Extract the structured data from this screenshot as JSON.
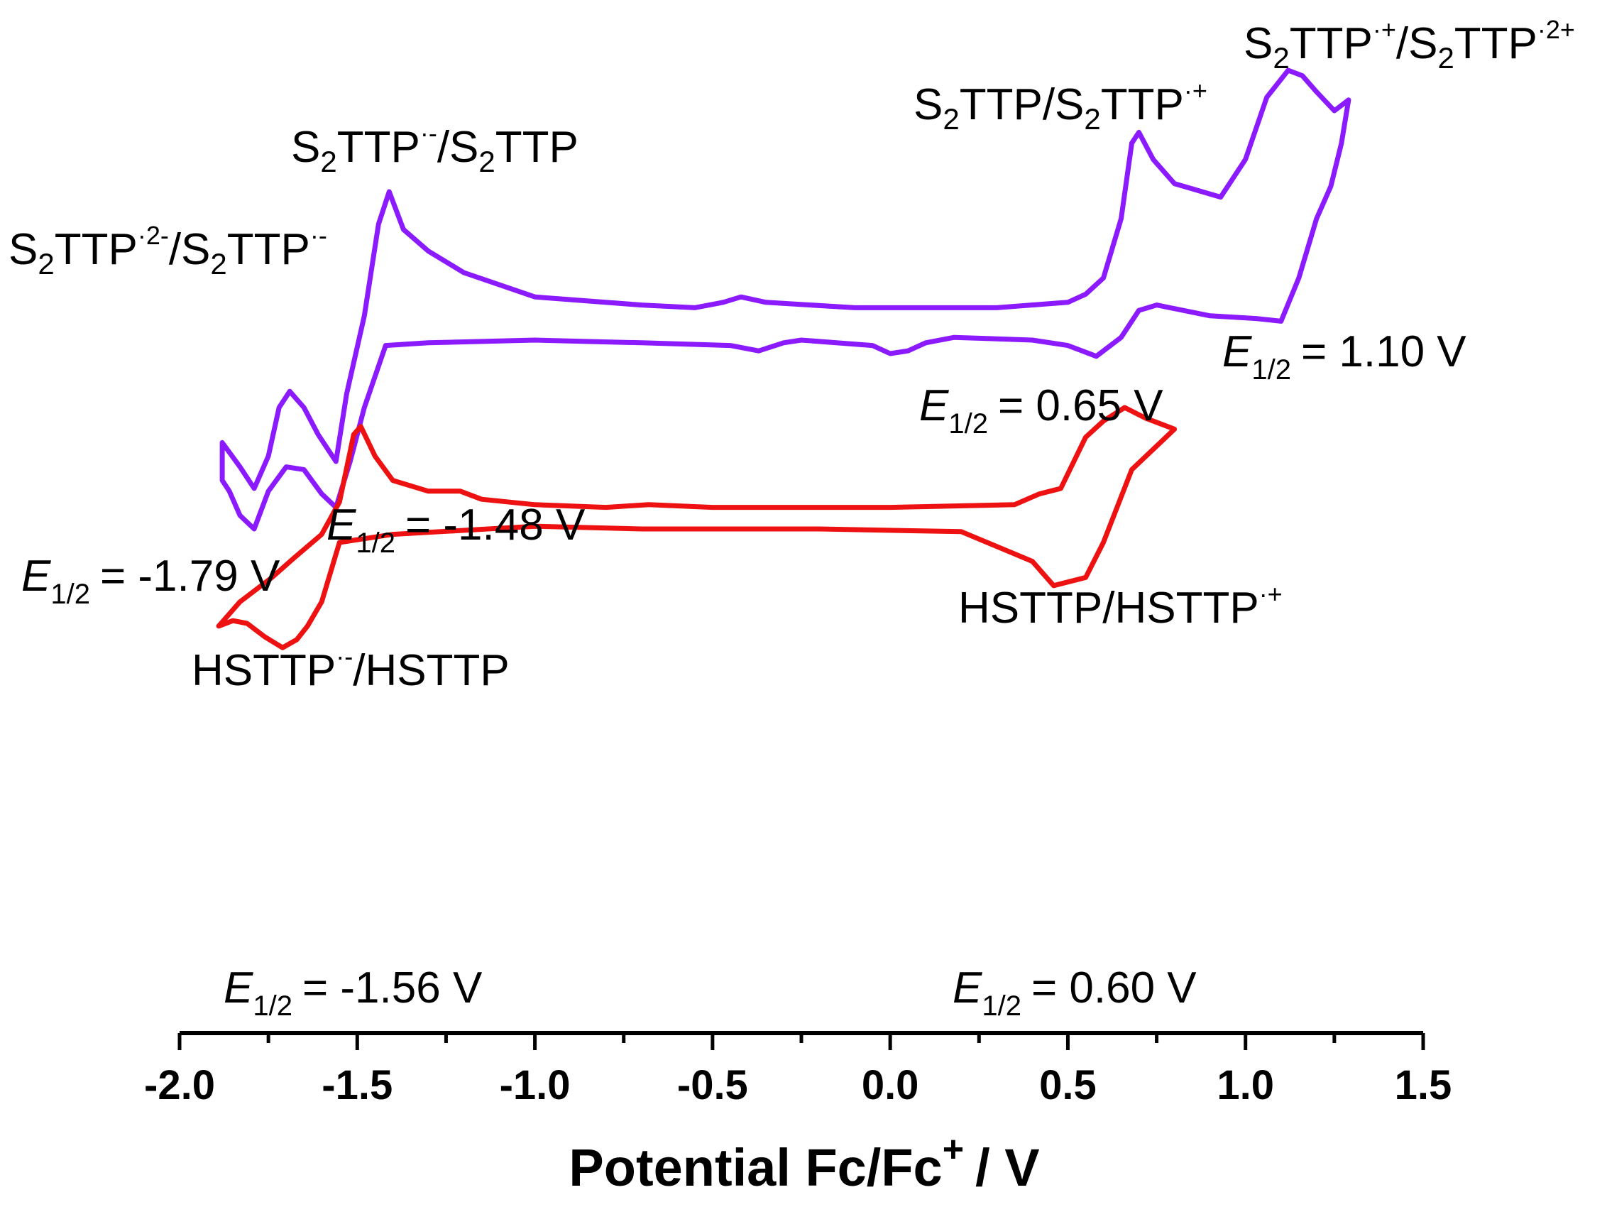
{
  "chart_data": {
    "type": "line",
    "xlabel": "Potential Fc/Fc",
    "xlabel_sup": "+",
    "xlabel_unit": "/ V",
    "xlim": [
      -2.0,
      1.5
    ],
    "x_ticks": [
      "-2.0",
      "-1.5",
      "-1.0",
      "-0.5",
      "0.0",
      "0.5",
      "1.0",
      "1.5"
    ],
    "y_axis": "none",
    "grid": false,
    "colors": {
      "S2TTP": "#8B1AFF",
      "HSTTP": "#EE1111",
      "axis": "#000000"
    },
    "series": [
      {
        "name": "S2TTP",
        "upper": [
          [
            -1.88,
            -0.93
          ],
          [
            -1.83,
            -1.02
          ],
          [
            -1.79,
            -1.1
          ],
          [
            -1.75,
            -0.98
          ],
          [
            -1.72,
            -0.8
          ],
          [
            -1.69,
            -0.74
          ],
          [
            -1.65,
            -0.8
          ],
          [
            -1.61,
            -0.9
          ],
          [
            -1.56,
            -1.0
          ],
          [
            -1.53,
            -0.75
          ],
          [
            -1.48,
            -0.46
          ],
          [
            -1.44,
            -0.12
          ],
          [
            -1.41,
            0.0
          ],
          [
            -1.37,
            -0.14
          ],
          [
            -1.3,
            -0.22
          ],
          [
            -1.2,
            -0.3
          ],
          [
            -1.0,
            -0.39
          ],
          [
            -0.7,
            -0.42
          ],
          [
            -0.55,
            -0.43
          ],
          [
            -0.47,
            -0.41
          ],
          [
            -0.42,
            -0.39
          ],
          [
            -0.35,
            -0.41
          ],
          [
            -0.1,
            -0.43
          ],
          [
            0.3,
            -0.43
          ],
          [
            0.5,
            -0.41
          ],
          [
            0.55,
            -0.38
          ],
          [
            0.6,
            -0.32
          ],
          [
            0.65,
            -0.1
          ],
          [
            0.68,
            0.18
          ],
          [
            0.7,
            0.22
          ],
          [
            0.74,
            0.12
          ],
          [
            0.8,
            0.03
          ],
          [
            0.93,
            -0.02
          ],
          [
            1.0,
            0.12
          ],
          [
            1.06,
            0.35
          ],
          [
            1.12,
            0.45
          ],
          [
            1.16,
            0.43
          ],
          [
            1.2,
            0.37
          ],
          [
            1.25,
            0.3
          ],
          [
            1.29,
            0.34
          ]
        ],
        "lower": [
          [
            1.29,
            0.34
          ],
          [
            1.27,
            0.18
          ],
          [
            1.24,
            0.02
          ],
          [
            1.2,
            -0.1
          ],
          [
            1.15,
            -0.32
          ],
          [
            1.1,
            -0.48
          ],
          [
            1.03,
            -0.47
          ],
          [
            0.9,
            -0.46
          ],
          [
            0.75,
            -0.42
          ],
          [
            0.7,
            -0.44
          ],
          [
            0.65,
            -0.54
          ],
          [
            0.58,
            -0.61
          ],
          [
            0.5,
            -0.57
          ],
          [
            0.4,
            -0.55
          ],
          [
            0.18,
            -0.54
          ],
          [
            0.1,
            -0.56
          ],
          [
            0.05,
            -0.59
          ],
          [
            0.0,
            -0.6
          ],
          [
            -0.05,
            -0.57
          ],
          [
            -0.25,
            -0.55
          ],
          [
            -0.3,
            -0.56
          ],
          [
            -0.37,
            -0.59
          ],
          [
            -0.45,
            -0.57
          ],
          [
            -0.7,
            -0.56
          ],
          [
            -1.0,
            -0.55
          ],
          [
            -1.3,
            -0.56
          ],
          [
            -1.42,
            -0.57
          ],
          [
            -1.48,
            -0.8
          ],
          [
            -1.52,
            -1.0
          ],
          [
            -1.56,
            -1.17
          ],
          [
            -1.6,
            -1.12
          ],
          [
            -1.65,
            -1.03
          ],
          [
            -1.7,
            -1.02
          ],
          [
            -1.75,
            -1.11
          ],
          [
            -1.79,
            -1.25
          ],
          [
            -1.83,
            -1.2
          ],
          [
            -1.86,
            -1.11
          ],
          [
            -1.88,
            -1.07
          ]
        ]
      },
      {
        "name": "HSTTP",
        "upper": [
          [
            -1.83,
            -1.52
          ],
          [
            -1.79,
            -1.48
          ],
          [
            -1.74,
            -1.43
          ],
          [
            -1.68,
            -1.36
          ],
          [
            -1.6,
            -1.27
          ],
          [
            -1.55,
            -1.15
          ],
          [
            -1.51,
            -0.9
          ],
          [
            -1.49,
            -0.87
          ],
          [
            -1.45,
            -0.98
          ],
          [
            -1.4,
            -1.07
          ],
          [
            -1.3,
            -1.11
          ],
          [
            -1.21,
            -1.11
          ],
          [
            -1.15,
            -1.14
          ],
          [
            -1.0,
            -1.16
          ],
          [
            -0.8,
            -1.17
          ],
          [
            -0.68,
            -1.16
          ],
          [
            -0.5,
            -1.17
          ],
          [
            -0.3,
            -1.17
          ],
          [
            0.0,
            -1.17
          ],
          [
            0.35,
            -1.16
          ],
          [
            0.42,
            -1.12
          ],
          [
            0.45,
            -1.11
          ],
          [
            0.48,
            -1.1
          ],
          [
            0.55,
            -0.91
          ],
          [
            0.6,
            -0.85
          ],
          [
            0.66,
            -0.8
          ],
          [
            0.72,
            -0.84
          ],
          [
            0.8,
            -0.88
          ]
        ],
        "lower": [
          [
            0.8,
            -0.88
          ],
          [
            0.76,
            -0.93
          ],
          [
            0.68,
            -1.03
          ],
          [
            0.6,
            -1.3
          ],
          [
            0.55,
            -1.43
          ],
          [
            0.46,
            -1.46
          ],
          [
            0.4,
            -1.37
          ],
          [
            0.2,
            -1.26
          ],
          [
            -0.2,
            -1.25
          ],
          [
            -0.7,
            -1.25
          ],
          [
            -1.0,
            -1.24
          ],
          [
            -1.4,
            -1.27
          ],
          [
            -1.55,
            -1.3
          ],
          [
            -1.6,
            -1.52
          ],
          [
            -1.64,
            -1.61
          ],
          [
            -1.67,
            -1.66
          ],
          [
            -1.71,
            -1.69
          ],
          [
            -1.76,
            -1.65
          ],
          [
            -1.81,
            -1.6
          ],
          [
            -1.85,
            -1.59
          ],
          [
            -1.89,
            -1.61
          ]
        ]
      }
    ]
  },
  "annotations": {
    "s2ttp_2m": {
      "sub1": "2",
      "base2": "TTP",
      "sup1": "·2-",
      "sep": "/S",
      "sub2": "2",
      "base3": "TTP",
      "sup2": "·-"
    },
    "s2ttp_m": {
      "sub1": "2",
      "base2": "TTP",
      "sup1": "·-",
      "sep": "/S",
      "sub2": "2",
      "base3": "TTP"
    },
    "s2ttp_p": {
      "sub1": "2",
      "base2": "TTP/S",
      "sub2": "2",
      "base3": "TTP",
      "sup1": "·+"
    },
    "s2ttp_2p": {
      "sub1": "2",
      "base2": "TTP",
      "sup1": "·+",
      "sep": "/S",
      "sub2": "2",
      "base3": "TTP",
      "sup2": "·2+"
    },
    "hsttp_m": {
      "base": "HSTTP",
      "sup": "·-",
      "rest": "/HSTTP"
    },
    "hsttp_p": {
      "base": "HSTTP/HSTTP",
      "sup": "·+"
    },
    "e_symbol": "E",
    "e_sub": "1/2",
    "e179": "= -1.79 V",
    "e148": "= -1.48 V",
    "e065": "= 0.65 V",
    "e110": "= 1.10 V",
    "e156": "= -1.56 V",
    "e060": "= 0.60 V"
  }
}
